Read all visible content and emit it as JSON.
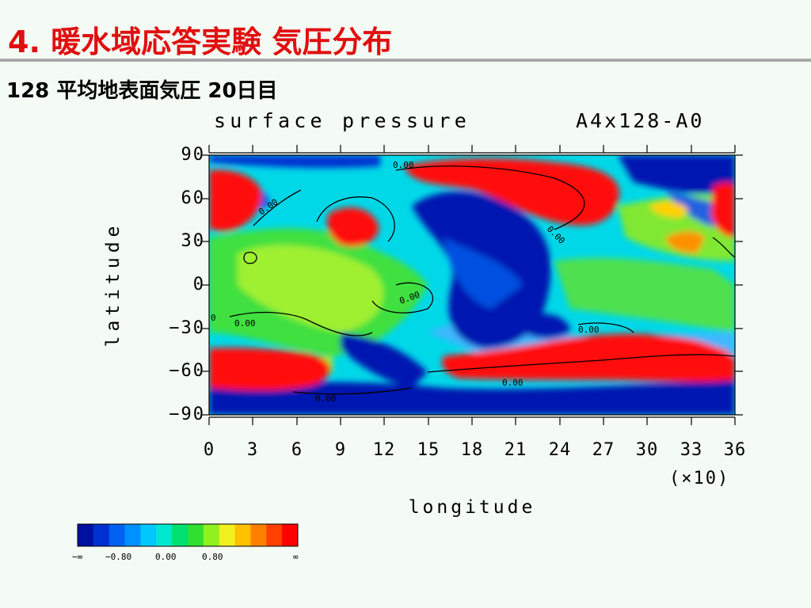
{
  "slide": {
    "title": "4. 暖水域応答実験 気圧分布",
    "subtitle": "128 平均地表面気圧 20日目"
  },
  "plot": {
    "title": "surface pressure",
    "run_id": "A4x128-A0",
    "xlabel": "longitude",
    "ylabel": "latitude",
    "x_scale_note": "(×10)",
    "y_ticks": [
      "90",
      "60",
      "30",
      "0",
      "−30",
      "−60",
      "−90"
    ],
    "x_ticks": [
      "0",
      "3",
      "6",
      "9",
      "12",
      "15",
      "18",
      "21",
      "24",
      "27",
      "30",
      "33",
      "36"
    ],
    "contour_labels": [
      "0.00",
      "0.00",
      "0.00",
      "0.00",
      "0.00",
      "0.00",
      "0.00",
      "0.00",
      "0"
    ]
  },
  "colorbar": {
    "colors": [
      "#0010a0",
      "#0030d0",
      "#0060f0",
      "#0090ff",
      "#00c8ff",
      "#00e8d0",
      "#00e070",
      "#30e030",
      "#90f020",
      "#f0f020",
      "#ffc000",
      "#ff8000",
      "#ff4000",
      "#ff0000"
    ],
    "labels": [
      "−∞",
      "−0.80",
      "0.00",
      "0.80",
      "∞"
    ]
  }
}
